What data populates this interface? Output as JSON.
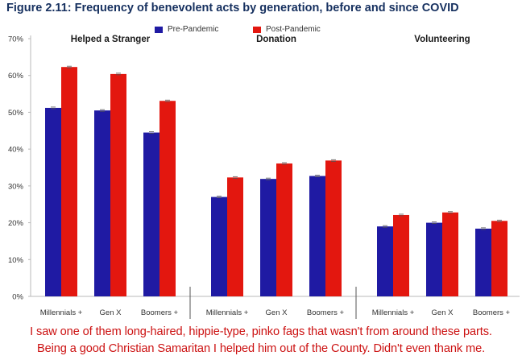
{
  "title": "Figure 2.11: Frequency of benevolent acts by generation, before and since COVID",
  "caption": {
    "line1": "I saw one of them long-haired, hippie-type, pinko fags that wasn't from around these parts.",
    "line2": "Being a good Christian Samaritan I helped him out of the County.   Didn't even thank me."
  },
  "colors": {
    "title": "#16305f",
    "pre": "#1f1aa3",
    "post": "#e3170f",
    "caption": "#cc1111",
    "axis": "#b8b8b8",
    "text": "#333333"
  },
  "chart_data": {
    "type": "bar",
    "title": "Figure 2.11: Frequency of benevolent acts by generation, before and since COVID",
    "ylim": [
      0,
      70
    ],
    "yticks": [
      0,
      10,
      20,
      30,
      40,
      50,
      60,
      70
    ],
    "ytick_labels": [
      "0%",
      "10%",
      "20%",
      "30%",
      "40%",
      "50%",
      "60%",
      "70%"
    ],
    "grid": false,
    "legend_position": "top-center",
    "groups": [
      {
        "name": "Helped a Stranger",
        "categories": [
          "Millennials +",
          "Gen X",
          "Boomers +"
        ]
      },
      {
        "name": "Donation",
        "categories": [
          "Millennials +",
          "Gen X",
          "Boomers +"
        ]
      },
      {
        "name": "Volunteering",
        "categories": [
          "Millennials +",
          "Gen X",
          "Boomers +"
        ]
      }
    ],
    "series": [
      {
        "name": "Pre-Pandemic",
        "color": "#1f1aa3",
        "values": [
          51.2,
          50.5,
          44.5,
          27.0,
          31.9,
          32.7,
          19.0,
          20.0,
          18.4
        ]
      },
      {
        "name": "Post-Pandemic",
        "color": "#e3170f",
        "values": [
          62.3,
          60.4,
          53.1,
          32.3,
          36.1,
          36.9,
          22.1,
          22.8,
          20.5
        ]
      }
    ]
  }
}
